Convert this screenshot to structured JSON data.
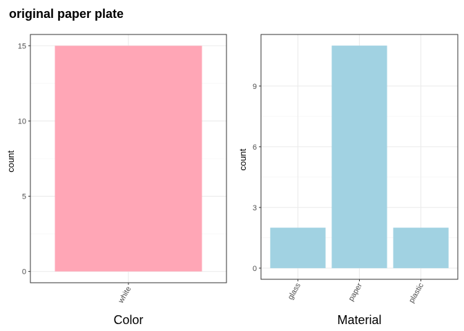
{
  "title": "original paper plate",
  "chart_data": [
    {
      "type": "bar",
      "categories": [
        "white"
      ],
      "values": [
        15
      ],
      "xlabel": "Color",
      "ylabel": "count",
      "ylim": [
        0,
        15
      ],
      "yticks": [
        0,
        5,
        10,
        15
      ],
      "color": "#FFA6B6",
      "grid": true
    },
    {
      "type": "bar",
      "categories": [
        "glass",
        "paper",
        "plastic"
      ],
      "values": [
        2,
        11,
        2
      ],
      "xlabel": "Material",
      "ylabel": "count",
      "ylim": [
        0,
        11
      ],
      "yticks": [
        0,
        3,
        6,
        9
      ],
      "color": "#A1D2E2",
      "grid": true
    }
  ]
}
